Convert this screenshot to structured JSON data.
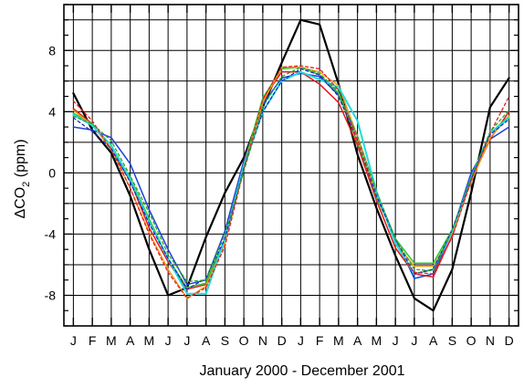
{
  "chart_data": {
    "type": "line",
    "title": "",
    "xlabel": "January 2000 - December 2001",
    "ylabel_main": "ΔCO",
    "ylabel_sub": "2",
    "ylabel_unit": " (ppm)",
    "ylim": [
      -10,
      11
    ],
    "yticks": [
      -8,
      -4,
      0,
      4,
      8
    ],
    "grid": true,
    "categories": [
      "J",
      "F",
      "M",
      "A",
      "M",
      "J",
      "J",
      "A",
      "S",
      "O",
      "N",
      "D",
      "J",
      "F",
      "M",
      "A",
      "M",
      "J",
      "J",
      "A",
      "S",
      "O",
      "N",
      "D"
    ],
    "series": [
      {
        "color": "#000000",
        "dash": "solid",
        "width": 2.2,
        "values": [
          5.2,
          2.8,
          1.3,
          -1.5,
          -5.0,
          -8.0,
          -7.5,
          -4.2,
          -1.3,
          1.0,
          4.3,
          7.2,
          10.0,
          9.7,
          5.8,
          1.2,
          -2.3,
          -5.4,
          -8.2,
          -9.0,
          -6.3,
          -1.3,
          4.3,
          6.2
        ]
      },
      {
        "color": "#1f3fd8",
        "dash": "solid",
        "width": 1.5,
        "values": [
          3.0,
          2.8,
          2.3,
          0.6,
          -2.4,
          -5.0,
          -7.3,
          -7.0,
          -3.8,
          0.8,
          4.5,
          6.2,
          6.5,
          6.3,
          5.1,
          2.4,
          -1.3,
          -4.3,
          -6.9,
          -6.6,
          -3.8,
          0.0,
          2.2,
          3.0
        ]
      },
      {
        "color": "#e01b1b",
        "dash": "solid",
        "width": 1.5,
        "values": [
          4.2,
          3.2,
          1.5,
          -0.5,
          -3.6,
          -5.8,
          -7.6,
          -7.3,
          -4.5,
          0.6,
          4.8,
          6.6,
          6.6,
          5.8,
          4.6,
          1.8,
          -1.8,
          -4.9,
          -6.6,
          -6.8,
          -4.1,
          -0.5,
          2.2,
          4.0
        ]
      },
      {
        "color": "#31c431",
        "dash": "solid",
        "width": 1.5,
        "values": [
          3.9,
          3.2,
          1.5,
          -0.3,
          -3.0,
          -5.6,
          -7.5,
          -7.2,
          -4.3,
          0.5,
          4.9,
          6.8,
          6.9,
          6.4,
          5.2,
          2.0,
          -1.6,
          -4.3,
          -5.9,
          -5.9,
          -3.7,
          -0.5,
          2.6,
          3.7
        ]
      },
      {
        "color": "#f0a020",
        "dash": "solid",
        "width": 1.5,
        "values": [
          4.1,
          3.1,
          1.6,
          -1.0,
          -3.9,
          -6.3,
          -8.2,
          -7.4,
          -4.6,
          0.3,
          4.6,
          6.9,
          6.9,
          6.6,
          5.7,
          2.4,
          -1.3,
          -4.6,
          -6.1,
          -6.1,
          -3.9,
          -0.6,
          2.3,
          3.7
        ]
      },
      {
        "color": "#22dada",
        "dash": "solid",
        "width": 2.0,
        "values": [
          3.8,
          3.1,
          1.8,
          -0.4,
          -3.2,
          -5.6,
          -7.9,
          -7.9,
          -4.3,
          0.5,
          4.0,
          6.0,
          6.6,
          6.1,
          5.6,
          3.4,
          -1.2,
          -4.6,
          -6.6,
          -6.3,
          -3.8,
          -0.3,
          2.6,
          3.6
        ]
      },
      {
        "color": "#1a2bd0",
        "dash": "dashed",
        "width": 1.3,
        "values": [
          3.6,
          2.7,
          1.6,
          -0.6,
          -3.3,
          -5.6,
          -7.6,
          -6.9,
          -4.3,
          0.3,
          4.0,
          6.0,
          6.8,
          6.4,
          5.0,
          2.1,
          -1.5,
          -4.3,
          -6.6,
          -6.3,
          -3.7,
          -0.4,
          2.5,
          3.5
        ]
      },
      {
        "color": "#e02020",
        "dash": "dashed",
        "width": 1.3,
        "values": [
          4.7,
          3.4,
          1.5,
          -1.0,
          -4.0,
          -6.5,
          -8.2,
          -7.5,
          -4.8,
          0.2,
          4.8,
          6.9,
          7.0,
          6.8,
          5.4,
          2.1,
          -1.8,
          -4.9,
          -6.5,
          -6.6,
          -4.2,
          -0.5,
          2.6,
          5.0
        ]
      },
      {
        "color": "#2aa52a",
        "dash": "dashed",
        "width": 1.3,
        "values": [
          3.7,
          3.2,
          2.1,
          -0.2,
          -2.6,
          -5.3,
          -7.1,
          -7.0,
          -4.0,
          0.1,
          4.3,
          6.3,
          6.9,
          6.5,
          5.3,
          2.4,
          -1.2,
          -4.3,
          -6.3,
          -6.4,
          -3.7,
          -0.3,
          2.7,
          4.1
        ]
      }
    ]
  }
}
